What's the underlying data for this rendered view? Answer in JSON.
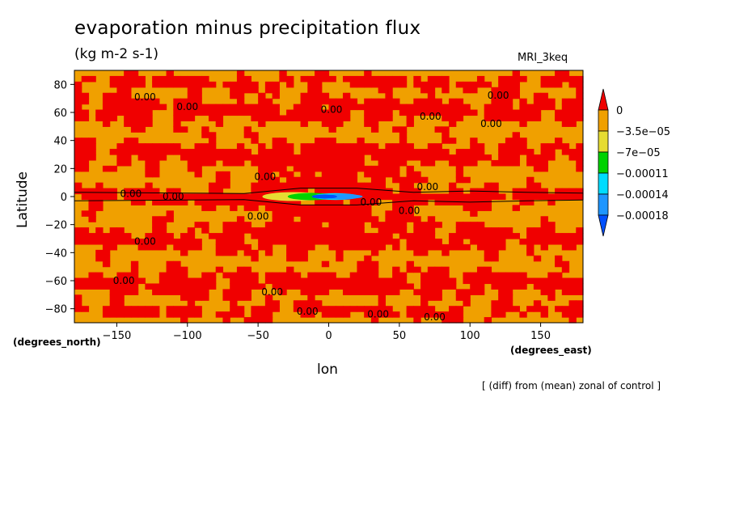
{
  "chart_data": {
    "type": "heatmap",
    "title": "evaporation minus precipitation flux",
    "subtitle": "(kg m-2 s-1)",
    "model_label": "MRI_3keq",
    "xlabel": "lon",
    "xlabel_unit": "(degrees_east)",
    "ylabel": "Latitude",
    "ylabel_unit": "(degrees_north)",
    "footnote": "[ (diff) from (mean) zonal of control ]",
    "xlim": [
      -180,
      180
    ],
    "ylim": [
      -90,
      90
    ],
    "x_ticks": [
      -150,
      -100,
      -50,
      0,
      50,
      100,
      150
    ],
    "y_ticks": [
      -80,
      -60,
      -40,
      -20,
      0,
      20,
      40,
      60,
      80
    ],
    "contour_label": "0.00",
    "colorbar": {
      "levels": [
        "0",
        "-3.5e-05",
        "-7e-05",
        "-0.00011",
        "-0.00014",
        "-0.00018"
      ],
      "colors": [
        "#f00000",
        "#f0a000",
        "#e6dc32",
        "#00d200",
        "#00dcff",
        "#1e96ff",
        "#0050ff"
      ]
    },
    "colors": {
      "positive": "#f00000",
      "near_zero": "#f0a000"
    },
    "contour_labels_at": [
      [
        -130,
        71
      ],
      [
        -100,
        64
      ],
      [
        2,
        62
      ],
      [
        72,
        57
      ],
      [
        120,
        72
      ],
      [
        115,
        52
      ],
      [
        -45,
        14
      ],
      [
        -140,
        2
      ],
      [
        -110,
        0
      ],
      [
        -50,
        -14
      ],
      [
        70,
        7
      ],
      [
        30,
        -4
      ],
      [
        57,
        -10
      ],
      [
        -130,
        -32
      ],
      [
        -145,
        -60
      ],
      [
        -40,
        -68
      ],
      [
        -15,
        -82
      ],
      [
        35,
        -84
      ],
      [
        75,
        -86
      ]
    ]
  }
}
